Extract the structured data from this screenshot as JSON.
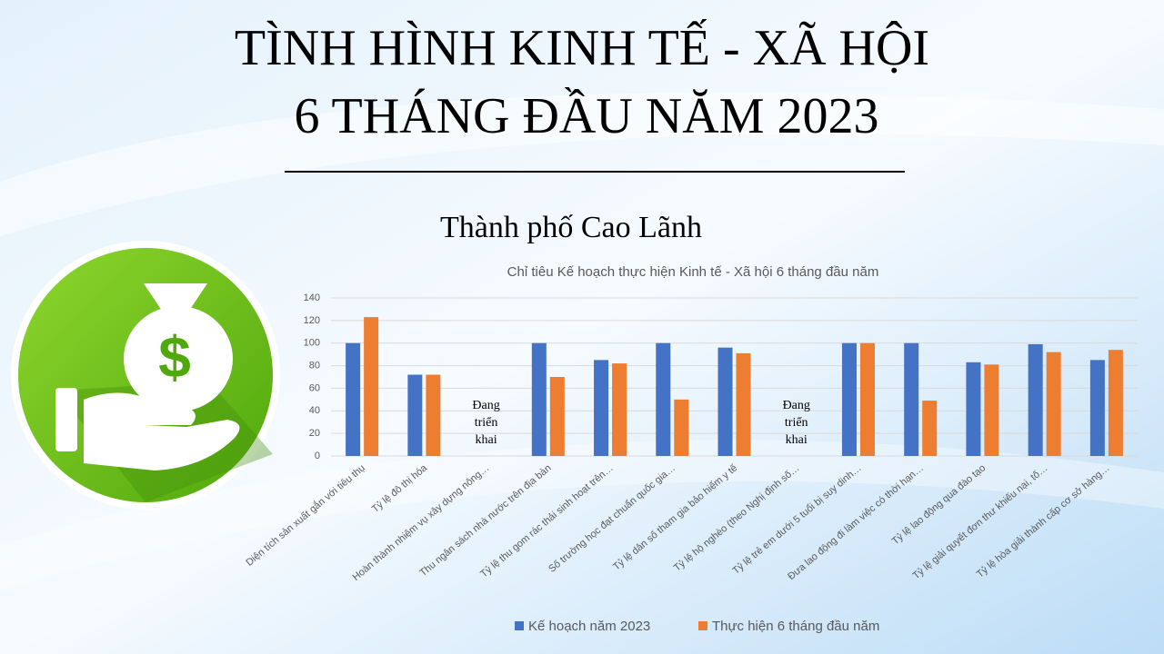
{
  "slide": {
    "title_lines": [
      "TÌNH HÌNH KINH TẾ - XÃ HỘI",
      "6 THÁNG ĐẦU NĂM 2023"
    ],
    "subtitle": "Thành phố Cao Lãnh"
  },
  "chart_data": {
    "type": "bar",
    "title": "Chỉ tiêu Kế hoạch thực hiện Kinh tế - Xã hội 6 tháng đầu năm",
    "categories": [
      "Diện tích sản xuất gắn với tiêu thụ",
      "Tỷ lệ đô thị hóa",
      "Hoàn thành nhiệm vụ xây dựng nông…",
      "Thu ngân sách nhà nước trên địa bàn",
      "Tỷ lệ thu gom rác thải sinh hoạt trên…",
      "Số trường học đạt chuẩn quốc gia…",
      "Tỷ lệ dân số tham gia bảo hiểm y tế",
      "Tỷ lệ hộ nghèo (theo Nghị định số…",
      "Tỷ lệ trẻ em dưới 5 tuổi bị suy dinh…",
      "Đưa lao động đi làm việc có thời hạn…",
      "Tỷ lệ lao động qua đào tạo",
      "Tỷ lệ giải quyết đơn thư khiếu nại, tố…",
      "Tỷ lệ hòa giải thành cấp cơ sở hàng…"
    ],
    "series": [
      {
        "name": "Kế hoạch năm 2023",
        "color": "#4472c4",
        "values": [
          100,
          72,
          null,
          100,
          85,
          100,
          96,
          null,
          100,
          100,
          83,
          99,
          85
        ]
      },
      {
        "name": "Thực hiện 6 tháng đầu năm",
        "color": "#ed7d31",
        "values": [
          123,
          72,
          null,
          70,
          82,
          50,
          91,
          null,
          100,
          49,
          81,
          92,
          94
        ]
      }
    ],
    "annotations": [
      {
        "category": "Hoàn thành nhiệm vụ xây dựng nông…",
        "text": "Đang triển khai"
      },
      {
        "category": "Tỷ lệ hộ nghèo (theo Nghị định số…",
        "text": "Đang triển khai"
      }
    ],
    "ylim": [
      0,
      140
    ],
    "yticks": [
      0,
      20,
      40,
      60,
      80,
      100,
      120,
      140
    ],
    "grid": true,
    "legend": "bottom"
  }
}
